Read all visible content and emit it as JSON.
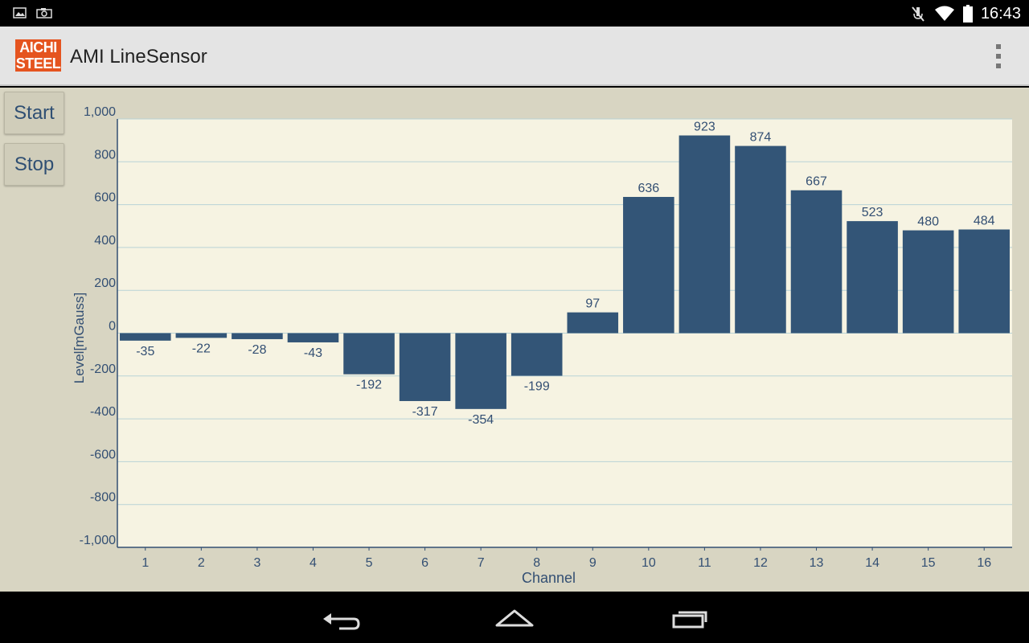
{
  "status_bar": {
    "time": "16:43",
    "left_icons": [
      "gallery-icon",
      "camera-icon"
    ],
    "right_icons": [
      "mute-icon",
      "wifi-icon",
      "battery-icon"
    ]
  },
  "app": {
    "logo_line1": "AICHI",
    "logo_line2": "STEEL",
    "title": "AMI LineSensor"
  },
  "controls": {
    "start_label": "Start",
    "stop_label": "Stop"
  },
  "colors": {
    "bar": "#335577",
    "plot_bg": "#f6f3e2",
    "grid": "#b9d3d6",
    "text": "#334f73",
    "content_bg": "#d8d5c2"
  },
  "chart_data": {
    "type": "bar",
    "xlabel": "Channel",
    "ylabel": "Level[mGauss]",
    "ylim": [
      -1000,
      1000
    ],
    "yticks": [
      1000,
      800,
      600,
      400,
      200,
      0,
      -200,
      -400,
      -600,
      -800,
      -1000
    ],
    "ytick_labels": [
      "1,000",
      "800",
      "600",
      "400",
      "200",
      "0",
      "-200",
      "-400",
      "-600",
      "-800",
      "-1,000"
    ],
    "categories": [
      "1",
      "2",
      "3",
      "4",
      "5",
      "6",
      "7",
      "8",
      "9",
      "10",
      "11",
      "12",
      "13",
      "14",
      "15",
      "16"
    ],
    "values": [
      -35,
      -22,
      -28,
      -43,
      -192,
      -317,
      -354,
      -199,
      97,
      636,
      923,
      874,
      667,
      523,
      480,
      484
    ],
    "grid": true,
    "data_labels": true
  }
}
